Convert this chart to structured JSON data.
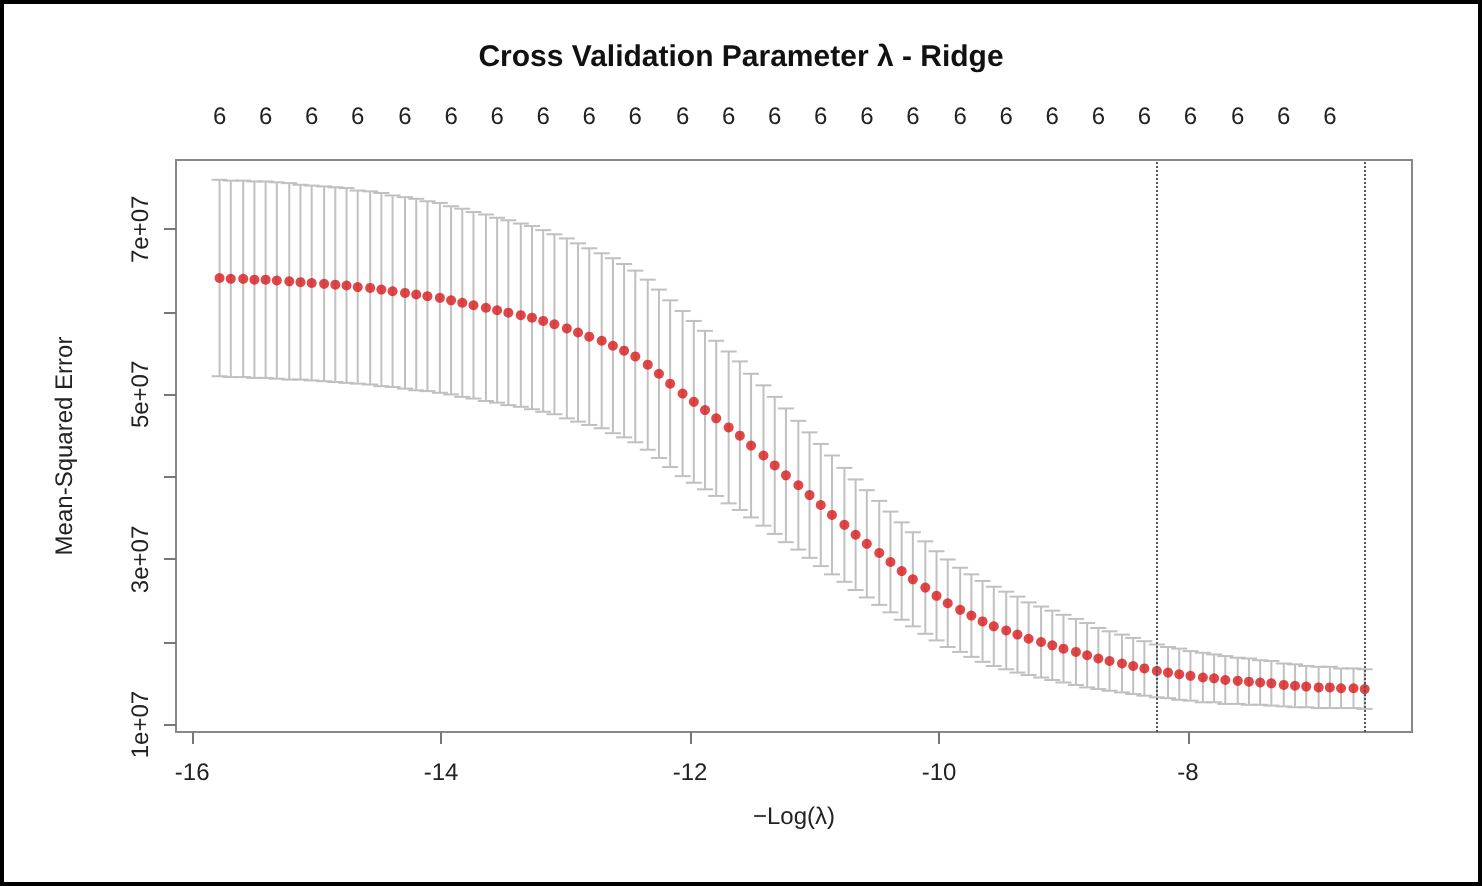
{
  "chart_data": {
    "type": "scatter",
    "title": "Cross Validation Parameter λ - Ridge",
    "xlabel": "−Log(λ)",
    "ylabel": "Mean-Squared Error",
    "color": "#d7191c",
    "marker": "circle",
    "x": [
      -15.78,
      -15.69,
      -15.59,
      -15.5,
      -15.41,
      -15.32,
      -15.22,
      -15.13,
      -15.04,
      -14.94,
      -14.85,
      -14.76,
      -14.67,
      -14.57,
      -14.48,
      -14.39,
      -14.29,
      -14.2,
      -14.11,
      -14.01,
      -13.92,
      -13.83,
      -13.74,
      -13.64,
      -13.55,
      -13.46,
      -13.36,
      -13.27,
      -13.18,
      -13.09,
      -12.99,
      -12.9,
      -12.81,
      -12.71,
      -12.62,
      -12.53,
      -12.44,
      -12.34,
      -12.25,
      -12.16,
      -12.06,
      -11.97,
      -11.88,
      -11.79,
      -11.69,
      -11.6,
      -11.51,
      -11.41,
      -11.32,
      -11.23,
      -11.13,
      -11.04,
      -10.95,
      -10.86,
      -10.76,
      -10.67,
      -10.58,
      -10.48,
      -10.39,
      -10.3,
      -10.21,
      -10.11,
      -10.02,
      -9.93,
      -9.83,
      -9.74,
      -9.65,
      -9.56,
      -9.46,
      -9.37,
      -9.28,
      -9.18,
      -9.09,
      -9.0,
      -8.9,
      -8.81,
      -8.72,
      -8.63,
      -8.53,
      -8.44,
      -8.35,
      -8.25,
      -8.16,
      -8.07,
      -7.98,
      -7.88,
      -7.79,
      -7.7,
      -7.6,
      -7.51,
      -7.42,
      -7.33,
      -7.23,
      -7.14,
      -7.05,
      -6.95,
      -6.86,
      -6.77,
      -6.67,
      -6.58
    ],
    "values": [
      64100000.0,
      64000000.0,
      64000000.0,
      63900000.0,
      63900000.0,
      63800000.0,
      63700000.0,
      63600000.0,
      63500000.0,
      63400000.0,
      63300000.0,
      63200000.0,
      63000000.0,
      62900000.0,
      62700000.0,
      62500000.0,
      62300000.0,
      62100000.0,
      61900000.0,
      61700000.0,
      61400000.0,
      61100000.0,
      60800000.0,
      60500000.0,
      60200000.0,
      59900000.0,
      59600000.0,
      59300000.0,
      58900000.0,
      58500000.0,
      58000000.0,
      57500000.0,
      57000000.0,
      56500000.0,
      55900000.0,
      55300000.0,
      54600000.0,
      53600000.0,
      52500000.0,
      51300000.0,
      50100000.0,
      49100000.0,
      48100000.0,
      47100000.0,
      46000000.0,
      45000000.0,
      43800000.0,
      42600000.0,
      41400000.0,
      40200000.0,
      39000000.0,
      37800000.0,
      36600000.0,
      35400000.0,
      34200000.0,
      33000000.0,
      31900000.0,
      30800000.0,
      29700000.0,
      28600000.0,
      27600000.0,
      26600000.0,
      25600000.0,
      24700000.0,
      23900000.0,
      23200000.0,
      22500000.0,
      21900000.0,
      21400000.0,
      20900000.0,
      20400000.0,
      20000000.0,
      19600000.0,
      19200000.0,
      18800000.0,
      18400000.0,
      18000000.0,
      17700000.0,
      17400000.0,
      17100000.0,
      16800000.0,
      16500000.0,
      16300000.0,
      16100000.0,
      15900000.0,
      15700000.0,
      15600000.0,
      15400000.0,
      15300000.0,
      15200000.0,
      15100000.0,
      15000000.0,
      14800000.0,
      14700000.0,
      14600000.0,
      14500000.0,
      14500000.0,
      14400000.0,
      14400000.0,
      14300000.0
    ],
    "errors": [
      11900000.0,
      11900000.0,
      11900000.0,
      11900000.0,
      11900000.0,
      11900000.0,
      11900000.0,
      11800000.0,
      11800000.0,
      11800000.0,
      11800000.0,
      11800000.0,
      11700000.0,
      11700000.0,
      11700000.0,
      11600000.0,
      11600000.0,
      11600000.0,
      11500000.0,
      11500000.0,
      11400000.0,
      11400000.0,
      11300000.0,
      11300000.0,
      11200000.0,
      11200000.0,
      11100000.0,
      11100000.0,
      11000000.0,
      10900000.0,
      10900000.0,
      10800000.0,
      10700000.0,
      10600000.0,
      10600000.0,
      10500000.0,
      10400000.0,
      10300000.0,
      10200000.0,
      10100000.0,
      10000000.0,
      9800000.0,
      9600000.0,
      9400000.0,
      9200000.0,
      9000000.0,
      8700000.0,
      8500000.0,
      8300000.0,
      8100000.0,
      7800000.0,
      7600000.0,
      7400000.0,
      7200000.0,
      6900000.0,
      6700000.0,
      6500000.0,
      6300000.0,
      6100000.0,
      5900000.0,
      5700000.0,
      5600000.0,
      5400000.0,
      5300000.0,
      5100000.0,
      5000000.0,
      4900000.0,
      4800000.0,
      4700000.0,
      4600000.0,
      4400000.0,
      4300000.0,
      4200000.0,
      4100000.0,
      4000000.0,
      3900000.0,
      3700000.0,
      3600000.0,
      3500000.0,
      3400000.0,
      3300000.0,
      3200000.0,
      3100000.0,
      3100000.0,
      3000000.0,
      3000000.0,
      2900000.0,
      2900000.0,
      2800000.0,
      2800000.0,
      2700000.0,
      2700000.0,
      2600000.0,
      2600000.0,
      2500000.0,
      2500000.0,
      2500000.0,
      2400000.0,
      2400000.0,
      2400000.0
    ],
    "xlim": [
      -16.13,
      -6.2
    ],
    "xticks": [
      -16,
      -14,
      -12,
      -10,
      -8
    ],
    "ylim": [
      9100000.0,
      78400000.0
    ],
    "yticks": [
      {
        "value": 10000000,
        "label": "1e+07"
      },
      {
        "value": 20000000,
        "label": null
      },
      {
        "value": 30000000,
        "label": "3e+07"
      },
      {
        "value": 40000000,
        "label": null
      },
      {
        "value": 50000000,
        "label": "5e+07"
      },
      {
        "value": 60000000,
        "label": null
      },
      {
        "value": 70000000,
        "label": "7e+07"
      }
    ],
    "annotations": [
      "6",
      "6",
      "6",
      "6",
      "6",
      "6",
      "6",
      "6",
      "6",
      "6",
      "6",
      "6",
      "6",
      "6",
      "6",
      "6",
      "6",
      "6",
      "6",
      "6",
      "6",
      "6",
      "6",
      "6",
      "6"
    ],
    "ref_lines": [
      {
        "axis": "x",
        "value": -8.25,
        "line_style": "dotted",
        "color": "#555555"
      },
      {
        "axis": "x",
        "value": -6.58,
        "line_style": "dotted",
        "color": "#555555"
      }
    ]
  }
}
